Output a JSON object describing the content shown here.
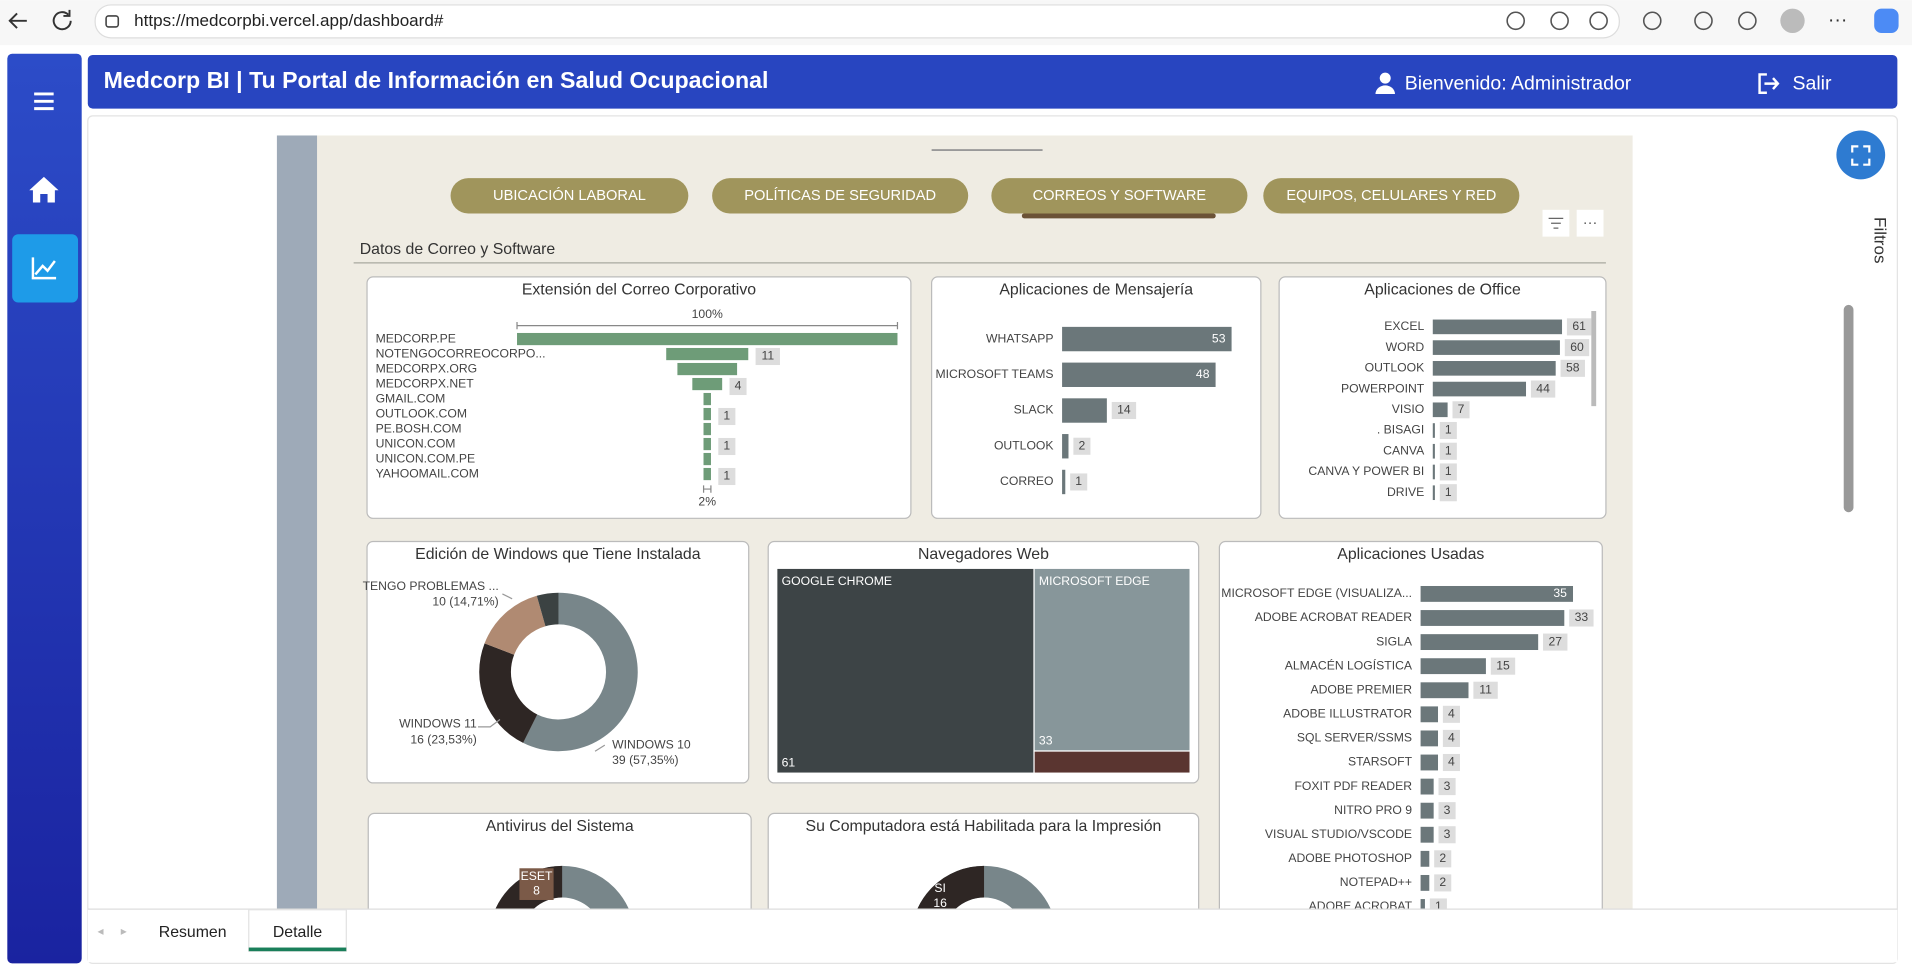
{
  "browser": {
    "url": "https://medcorpbi.vercel.app/dashboard#"
  },
  "header": {
    "title": "Medcorp BI | Tu Portal de Información en Salud Ocupacional",
    "welcome": "Bienvenido: Administrador",
    "logout": "Salir"
  },
  "nav_buttons": [
    "UBICACIÓN LABORAL",
    "POLÍTICAS DE SEGURIDAD",
    "CORREOS Y SOFTWARE",
    "EQUIPOS, CELULARES Y RED"
  ],
  "section_title": "Datos de Correo y Software",
  "filters_label": "Filtros",
  "page_tabs": [
    "Resumen",
    "Detalle"
  ],
  "charts": [
    {
      "type": "funnel",
      "title": "Extensión del Correo Corporativo",
      "categories": [
        "MEDCORP.PE",
        "NOTENGOCORREOCORPO...",
        "MEDCORPX.ORG",
        "MEDCORPX.NET",
        "GMAIL.COM",
        "OUTLOOK.COM",
        "PE.BOSH.COM",
        "UNICON.COM",
        "UNICON.COM.PE",
        "YAHOOMAIL.COM"
      ],
      "values": [
        51,
        11,
        8,
        4,
        1,
        1,
        1,
        1,
        1,
        1
      ],
      "color": "#6e9c78",
      "top_label": "100%",
      "bottom_label": "2%"
    },
    {
      "type": "hbar",
      "title": "Aplicaciones de Mensajería",
      "categories": [
        "WHATSAPP",
        "MICROSOFT TEAMS",
        "SLACK",
        "OUTLOOK",
        "CORREO"
      ],
      "values": [
        53,
        48,
        14,
        2,
        1
      ],
      "color": "#6b777a"
    },
    {
      "type": "hbar",
      "title": "Aplicaciones de Office",
      "categories": [
        "EXCEL",
        "WORD",
        "OUTLOOK",
        "POWERPOINT",
        "VISIO",
        ". BISAGI",
        "CANVA",
        "CANVA Y POWER BI",
        "DRIVE"
      ],
      "values": [
        61,
        60,
        58,
        44,
        7,
        1,
        1,
        1,
        1
      ],
      "color": "#6b777a"
    },
    {
      "type": "donut",
      "title": "Edición de Windows que Tiene Instalada",
      "categories": [
        "WINDOWS 10",
        "WINDOWS 11",
        "TENGO PROBLEMAS ...",
        null
      ],
      "values": [
        39,
        16,
        10,
        3
      ],
      "value_labels": [
        "39 (57,35%)",
        "16 (23,53%)",
        "10 (14,71%)",
        null
      ],
      "colors": [
        "#78868a",
        "#2e2624",
        "#b08a72",
        "#3b4242"
      ]
    },
    {
      "type": "treemap",
      "title": "Navegadores Web",
      "categories": [
        "GOOGLE CHROME",
        "MICROSOFT EDGE",
        null
      ],
      "values": [
        61,
        33,
        4
      ],
      "colors": [
        "#3d4446",
        "#87969a",
        "#5a3530"
      ]
    },
    {
      "type": "hbar",
      "title": "Aplicaciones Usadas",
      "categories": [
        "MICROSOFT EDGE (VISUALIZA...",
        "ADOBE ACROBAT READER",
        "SIGLA",
        "ALMACÉN LOGÍSTICA",
        "ADOBE PREMIER",
        "ADOBE ILLUSTRATOR",
        "SQL SERVER/SSMS",
        "STARSOFT",
        "FOXIT PDF READER",
        "NITRO PRO 9",
        "VISUAL STUDIO/VSCODE",
        "ADOBE PHOTOSHOP",
        "NOTEPAD++",
        "ADOBE ACROBAT"
      ],
      "values": [
        35,
        33,
        27,
        15,
        11,
        4,
        4,
        4,
        3,
        3,
        3,
        2,
        2,
        1
      ],
      "color": "#6b777a"
    },
    {
      "type": "partial-donut",
      "title": "Antivirus del Sistema",
      "label": {
        "category": "ESET",
        "value": 8
      }
    },
    {
      "type": "partial-donut",
      "title": "Su Computadora está Habilitada para la Impresión",
      "label": {
        "category": "SI",
        "value": 16
      }
    }
  ]
}
